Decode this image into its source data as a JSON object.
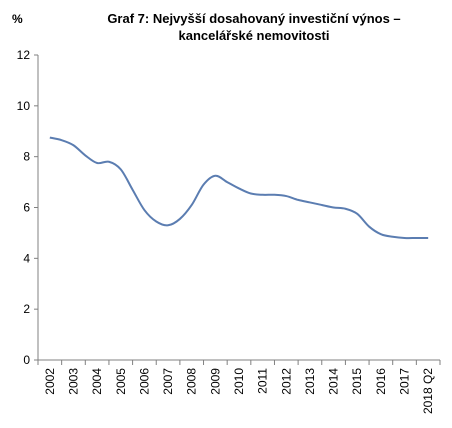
{
  "chart_data": {
    "type": "line",
    "title_lines": [
      "Graf 7: Nejvyšší dosahovaný  investiční výnos –",
      "kancelářské  nemovitosti"
    ],
    "unit_label": "%",
    "categories": [
      "2002",
      "2003",
      "2004",
      "2005",
      "2006",
      "2007",
      "2008",
      "2009",
      "2010",
      "2011",
      "2012",
      "2013",
      "2014",
      "2015",
      "2016",
      "2017",
      "2018 Q2"
    ],
    "x": [
      2002.0,
      2002.5,
      2003.0,
      2003.5,
      2004.0,
      2004.5,
      2005.0,
      2005.5,
      2006.0,
      2006.5,
      2007.0,
      2007.5,
      2008.0,
      2008.5,
      2009.0,
      2009.5,
      2010.0,
      2010.5,
      2011.0,
      2011.5,
      2012.0,
      2012.5,
      2013.0,
      2013.5,
      2014.0,
      2014.5,
      2015.0,
      2015.5,
      2016.0,
      2016.5,
      2017.0,
      2017.5,
      2018.0
    ],
    "series": [
      {
        "values": [
          8.75,
          8.65,
          8.45,
          8.05,
          7.75,
          7.8,
          7.5,
          6.7,
          5.9,
          5.45,
          5.3,
          5.55,
          6.1,
          6.9,
          7.25,
          7.0,
          6.75,
          6.55,
          6.5,
          6.5,
          6.45,
          6.3,
          6.2,
          6.1,
          6.0,
          5.95,
          5.75,
          5.25,
          4.95,
          4.85,
          4.8,
          4.8,
          4.8
        ],
        "color": "#5b7db1"
      }
    ],
    "y_ticks": [
      0,
      2,
      4,
      6,
      8,
      10,
      12
    ],
    "ylim": [
      0,
      12
    ],
    "grid": false
  }
}
